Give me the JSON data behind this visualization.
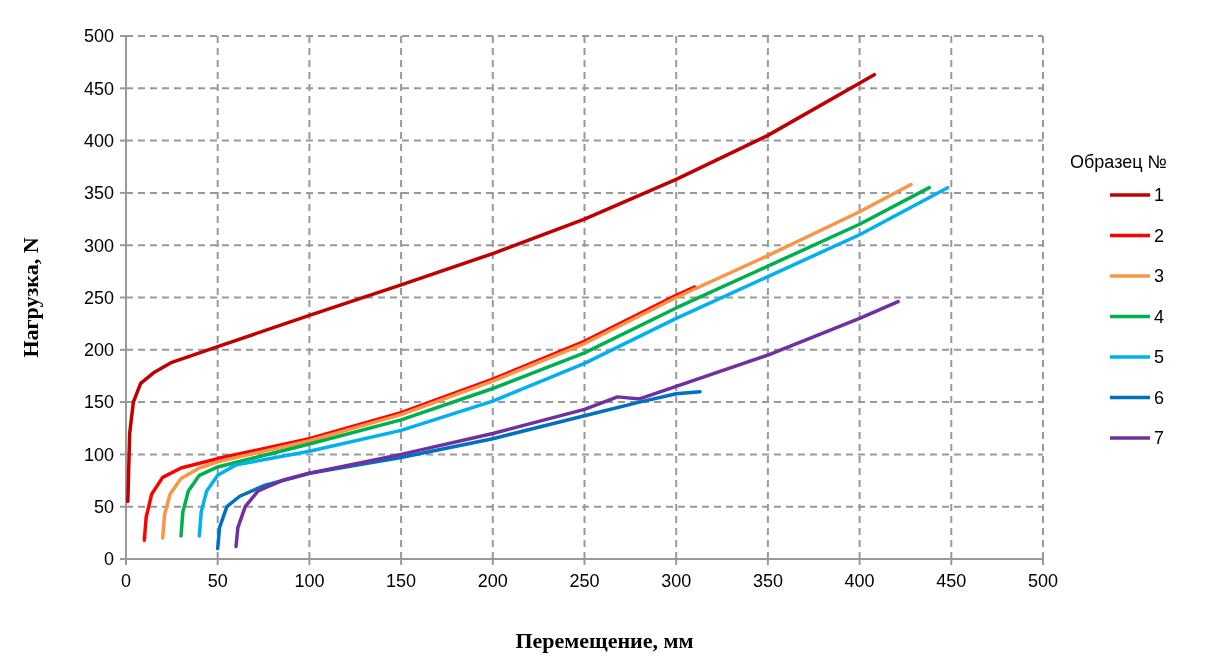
{
  "chart_data": {
    "type": "line",
    "xlabel": "Перемещение, мм",
    "ylabel": "Нагрузка, N",
    "legend_title": "Образец  №",
    "xlim": [
      0,
      500
    ],
    "ylim": [
      0,
      500
    ],
    "xticks": [
      0,
      50,
      100,
      150,
      200,
      250,
      300,
      350,
      400,
      450,
      500
    ],
    "yticks": [
      0,
      50,
      100,
      150,
      200,
      250,
      300,
      350,
      400,
      450,
      500
    ],
    "grid": true,
    "legend": "right",
    "line_style": "solid",
    "marker": "none",
    "series": [
      {
        "name": "1",
        "color": "#c00000",
        "x": [
          1,
          2,
          4,
          8,
          15,
          25,
          50,
          100,
          150,
          200,
          250,
          300,
          350,
          408
        ],
        "values": [
          55,
          120,
          150,
          168,
          178,
          188,
          203,
          233,
          262,
          292,
          325,
          363,
          405,
          463
        ]
      },
      {
        "name": "2",
        "color": "#ff0000",
        "x": [
          10,
          11,
          14,
          20,
          30,
          50,
          100,
          150,
          200,
          250,
          300,
          310
        ],
        "values": [
          18,
          40,
          62,
          78,
          87,
          96,
          115,
          140,
          172,
          208,
          252,
          260
        ]
      },
      {
        "name": "3",
        "color": "#f79646",
        "x": [
          20,
          21,
          24,
          30,
          40,
          50,
          100,
          150,
          200,
          250,
          300,
          350,
          400,
          428
        ],
        "values": [
          20,
          42,
          62,
          77,
          87,
          93,
          113,
          138,
          170,
          206,
          250,
          290,
          332,
          358
        ]
      },
      {
        "name": "4",
        "color": "#00b050",
        "x": [
          30,
          31,
          34,
          40,
          50,
          100,
          150,
          200,
          250,
          300,
          350,
          400,
          438
        ],
        "values": [
          22,
          45,
          65,
          80,
          88,
          110,
          133,
          163,
          197,
          240,
          280,
          320,
          355
        ]
      },
      {
        "name": "5",
        "color": "#00b0f0",
        "x": [
          40,
          41,
          44,
          50,
          60,
          100,
          150,
          200,
          250,
          300,
          350,
          400,
          448
        ],
        "values": [
          22,
          45,
          65,
          80,
          90,
          103,
          123,
          151,
          187,
          230,
          270,
          310,
          355
        ]
      },
      {
        "name": "6",
        "color": "#0070c0",
        "x": [
          50,
          51,
          55,
          62,
          75,
          100,
          150,
          200,
          250,
          280,
          300,
          313
        ],
        "values": [
          10,
          30,
          50,
          60,
          70,
          82,
          97,
          115,
          137,
          150,
          158,
          160
        ]
      },
      {
        "name": "7",
        "color": "#7030a0",
        "x": [
          60,
          61,
          65,
          72,
          85,
          100,
          150,
          200,
          250,
          268,
          280,
          300,
          350,
          400,
          421
        ],
        "values": [
          12,
          30,
          50,
          65,
          75,
          82,
          100,
          120,
          143,
          155,
          153,
          165,
          195,
          230,
          246
        ]
      }
    ]
  }
}
